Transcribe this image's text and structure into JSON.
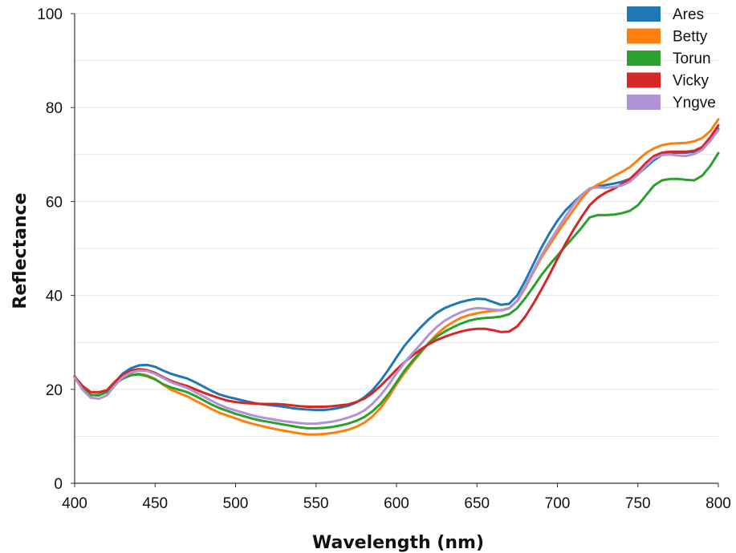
{
  "chart_data": {
    "type": "line",
    "title": "",
    "xlabel": "Wavelength (nm)",
    "ylabel": "Reflectance",
    "xlim": [
      400,
      800
    ],
    "ylim": [
      0,
      100
    ],
    "xticks": [
      400,
      450,
      500,
      550,
      600,
      650,
      700,
      750,
      800
    ],
    "yticks": [
      0,
      20,
      40,
      60,
      80,
      100
    ],
    "grid": "horizontal",
    "legend_position": "top-right",
    "x": [
      400,
      405,
      410,
      415,
      420,
      425,
      430,
      435,
      440,
      445,
      450,
      455,
      460,
      465,
      470,
      475,
      480,
      485,
      490,
      495,
      500,
      505,
      510,
      515,
      520,
      525,
      530,
      535,
      540,
      545,
      550,
      555,
      560,
      565,
      570,
      575,
      580,
      585,
      590,
      595,
      600,
      605,
      610,
      615,
      620,
      625,
      630,
      635,
      640,
      645,
      650,
      655,
      660,
      665,
      670,
      675,
      680,
      685,
      690,
      695,
      700,
      705,
      710,
      715,
      720,
      725,
      730,
      735,
      740,
      745,
      750,
      755,
      760,
      765,
      770,
      775,
      780,
      785,
      790,
      795,
      800
    ],
    "series": [
      {
        "name": "Ares",
        "color": "#1f77b4",
        "values": [
          22.5,
          20.5,
          18.8,
          18.7,
          19.6,
          21.5,
          23.4,
          24.5,
          25.1,
          25.2,
          24.8,
          24.0,
          23.3,
          22.8,
          22.3,
          21.5,
          20.6,
          19.7,
          18.9,
          18.4,
          18.0,
          17.6,
          17.2,
          16.9,
          16.7,
          16.5,
          16.3,
          16.0,
          15.8,
          15.7,
          15.6,
          15.6,
          15.8,
          16.1,
          16.5,
          17.2,
          18.3,
          19.8,
          21.8,
          24.2,
          26.8,
          29.3,
          31.3,
          33.2,
          34.9,
          36.3,
          37.3,
          38.0,
          38.6,
          39.0,
          39.3,
          39.2,
          38.6,
          38.0,
          38.2,
          40.0,
          43.1,
          46.6,
          50.1,
          53.2,
          55.9,
          58.1,
          59.8,
          61.4,
          62.7,
          63.2,
          63.5,
          63.8,
          64.2,
          64.8,
          65.8,
          67.3,
          68.8,
          69.9,
          70.3,
          70.4,
          70.4,
          70.6,
          71.4,
          73.0,
          75.5
        ]
      },
      {
        "name": "Betty",
        "color": "#ff7f0e",
        "values": [
          22.5,
          20.0,
          18.7,
          18.9,
          19.5,
          21.2,
          22.6,
          23.1,
          23.3,
          23.0,
          22.2,
          21.0,
          19.9,
          19.2,
          18.5,
          17.6,
          16.7,
          15.8,
          15.0,
          14.4,
          13.8,
          13.2,
          12.7,
          12.3,
          11.9,
          11.5,
          11.2,
          10.9,
          10.6,
          10.4,
          10.4,
          10.5,
          10.7,
          11.0,
          11.4,
          12.0,
          12.9,
          14.2,
          16.0,
          18.3,
          21.1,
          23.5,
          25.7,
          27.8,
          29.9,
          31.7,
          33.2,
          34.3,
          35.2,
          35.8,
          36.2,
          36.5,
          36.7,
          36.9,
          37.3,
          38.8,
          41.6,
          44.9,
          48.0,
          50.7,
          53.3,
          55.8,
          58.2,
          60.6,
          62.5,
          63.6,
          64.4,
          65.4,
          66.3,
          67.3,
          68.8,
          70.3,
          71.3,
          72.0,
          72.3,
          72.4,
          72.5,
          72.8,
          73.5,
          75.0,
          77.5
        ]
      },
      {
        "name": "Torun",
        "color": "#2ca02c",
        "values": [
          22.8,
          20.3,
          18.8,
          18.7,
          19.4,
          21.1,
          22.3,
          23.0,
          23.2,
          22.8,
          22.1,
          21.1,
          20.4,
          19.9,
          19.4,
          18.6,
          17.7,
          16.8,
          16.0,
          15.4,
          14.8,
          14.3,
          13.8,
          13.4,
          13.1,
          12.8,
          12.5,
          12.2,
          11.9,
          11.7,
          11.7,
          11.8,
          12.0,
          12.3,
          12.7,
          13.3,
          14.1,
          15.3,
          16.9,
          19.0,
          21.5,
          24.0,
          26.1,
          28.0,
          29.8,
          31.2,
          32.3,
          33.2,
          34.0,
          34.6,
          35.0,
          35.2,
          35.3,
          35.5,
          36.0,
          37.3,
          39.4,
          41.8,
          44.3,
          46.5,
          48.5,
          50.5,
          52.4,
          54.4,
          56.6,
          57.1,
          57.1,
          57.2,
          57.5,
          58.0,
          59.2,
          61.3,
          63.4,
          64.5,
          64.8,
          64.8,
          64.6,
          64.5,
          65.5,
          67.6,
          70.3
        ]
      },
      {
        "name": "Vicky",
        "color": "#d62728",
        "values": [
          22.7,
          20.7,
          19.4,
          19.4,
          19.8,
          21.6,
          23.1,
          24.0,
          24.3,
          24.1,
          23.5,
          22.6,
          21.8,
          21.2,
          20.7,
          20.0,
          19.3,
          18.7,
          18.1,
          17.6,
          17.3,
          17.1,
          17.0,
          16.9,
          16.9,
          16.9,
          16.8,
          16.6,
          16.4,
          16.3,
          16.3,
          16.3,
          16.4,
          16.6,
          16.8,
          17.3,
          18.0,
          19.2,
          20.7,
          22.4,
          24.2,
          25.8,
          27.2,
          28.5,
          29.6,
          30.5,
          31.2,
          31.8,
          32.3,
          32.7,
          32.9,
          32.9,
          32.6,
          32.2,
          32.3,
          33.4,
          35.5,
          38.2,
          41.2,
          44.4,
          47.8,
          51.0,
          54.0,
          56.7,
          59.2,
          60.8,
          61.9,
          62.7,
          63.7,
          64.8,
          66.4,
          68.2,
          69.7,
          70.4,
          70.6,
          70.6,
          70.6,
          70.8,
          71.6,
          73.7,
          76.2
        ]
      },
      {
        "name": "Yngve",
        "color": "#b292d6",
        "values": [
          22.5,
          19.9,
          18.2,
          18.0,
          18.7,
          20.8,
          22.6,
          23.6,
          24.0,
          23.9,
          23.3,
          22.4,
          21.5,
          20.9,
          20.3,
          19.4,
          18.5,
          17.6,
          16.7,
          16.0,
          15.5,
          15.0,
          14.5,
          14.1,
          13.8,
          13.5,
          13.2,
          13.0,
          12.8,
          12.7,
          12.7,
          12.9,
          13.1,
          13.5,
          14.0,
          14.6,
          15.5,
          16.9,
          18.7,
          20.9,
          23.4,
          25.7,
          27.7,
          29.6,
          31.6,
          33.3,
          34.6,
          35.6,
          36.4,
          37.0,
          37.3,
          37.2,
          37.0,
          36.8,
          37.2,
          38.9,
          41.9,
          45.2,
          48.5,
          51.4,
          54.1,
          56.8,
          59.3,
          61.4,
          62.8,
          63.0,
          62.9,
          63.1,
          63.4,
          64.2,
          65.7,
          67.6,
          69.2,
          69.9,
          70.0,
          69.8,
          69.7,
          70.1,
          71.0,
          72.9,
          75.2
        ]
      }
    ]
  }
}
